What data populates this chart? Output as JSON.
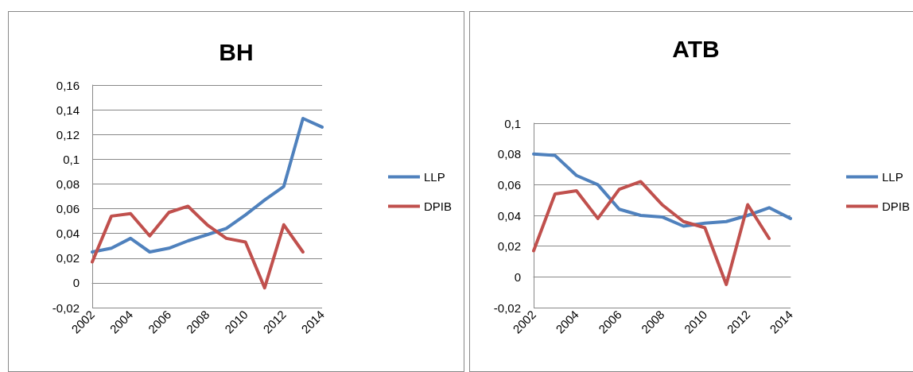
{
  "chart_data": [
    {
      "type": "line",
      "title": "BH",
      "categories": [
        "2002",
        null,
        "2004",
        null,
        "2006",
        null,
        "2008",
        null,
        "2010",
        null,
        "2012",
        null,
        "2014"
      ],
      "series": [
        {
          "name": "LLP",
          "color": "#4f81bd",
          "values": [
            0.025,
            0.028,
            0.036,
            0.025,
            0.028,
            0.034,
            0.039,
            0.044,
            0.055,
            0.067,
            0.078,
            0.133,
            0.126
          ]
        },
        {
          "name": "DPIB",
          "color": "#c0504d",
          "values": [
            0.017,
            0.054,
            0.056,
            0.038,
            0.057,
            0.062,
            0.047,
            0.036,
            0.033,
            -0.004,
            0.047,
            0.025,
            null
          ]
        }
      ],
      "ylim": [
        -0.02,
        0.16
      ],
      "yticks": [
        {
          "value": -0.02,
          "label": "-0,02"
        },
        {
          "value": 0,
          "label": "0"
        },
        {
          "value": 0.02,
          "label": "0,02"
        },
        {
          "value": 0.04,
          "label": "0,04"
        },
        {
          "value": 0.06,
          "label": "0,06"
        },
        {
          "value": 0.08,
          "label": "0,08"
        },
        {
          "value": 0.1,
          "label": "0,1"
        },
        {
          "value": 0.12,
          "label": "0,12"
        },
        {
          "value": 0.14,
          "label": "0,14"
        },
        {
          "value": 0.16,
          "label": "0,16"
        }
      ],
      "grid": "y",
      "legend": "right",
      "marker": "none",
      "line_style": "solid"
    },
    {
      "type": "line",
      "title": "ATB",
      "categories": [
        "2002",
        null,
        "2004",
        null,
        "2006",
        null,
        "2008",
        null,
        "2010",
        null,
        "2012",
        null,
        "2014"
      ],
      "series": [
        {
          "name": "LLP",
          "color": "#4f81bd",
          "values": [
            0.08,
            0.079,
            0.066,
            0.06,
            0.044,
            0.04,
            0.039,
            0.033,
            0.035,
            0.036,
            0.04,
            0.045,
            0.038
          ]
        },
        {
          "name": "DPIB",
          "color": "#c0504d",
          "values": [
            0.017,
            0.054,
            0.056,
            0.038,
            0.057,
            0.062,
            0.047,
            0.036,
            0.032,
            -0.005,
            0.047,
            0.025,
            null
          ]
        }
      ],
      "ylim": [
        -0.02,
        0.1
      ],
      "yticks": [
        {
          "value": -0.02,
          "label": "-0,02"
        },
        {
          "value": 0,
          "label": "0"
        },
        {
          "value": 0.02,
          "label": "0,02"
        },
        {
          "value": 0.04,
          "label": "0,04"
        },
        {
          "value": 0.06,
          "label": "0,06"
        },
        {
          "value": 0.08,
          "label": "0,08"
        },
        {
          "value": 0.1,
          "label": "0,1"
        }
      ],
      "grid": "y",
      "legend": "right",
      "marker": "none",
      "line_style": "solid"
    }
  ]
}
